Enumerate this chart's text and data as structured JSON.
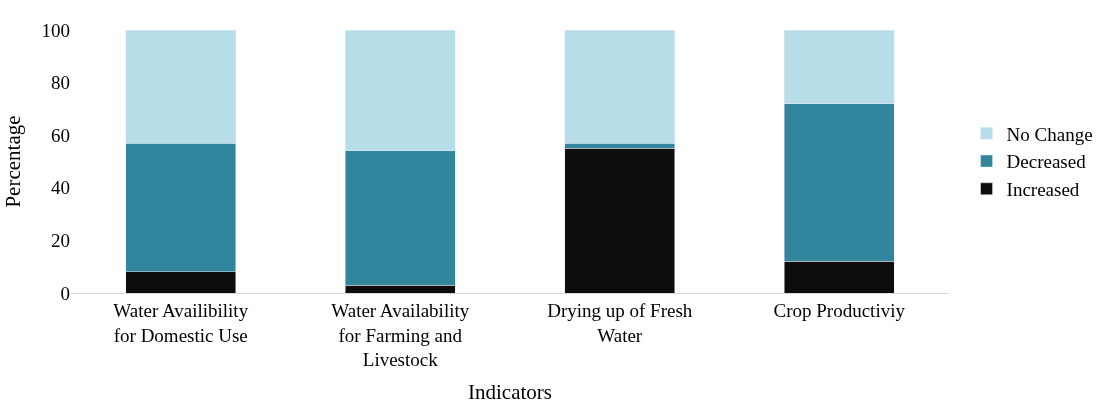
{
  "chart_data": {
    "type": "bar",
    "stacked": true,
    "xlabel": "Indicators",
    "ylabel": "Percentage",
    "categories": [
      "Water Availibility for Domestic Use",
      "Water Availability for Farming and Livestock",
      "Drying up of Fresh Water",
      "Crop Productiviy"
    ],
    "series": [
      {
        "name": "Increased",
        "color": "#0d0d0d",
        "values": [
          8,
          3,
          55,
          12
        ]
      },
      {
        "name": "Decreased",
        "color": "#31859c",
        "values": [
          49,
          51,
          2,
          60
        ]
      },
      {
        "name": "No Change",
        "color": "#b7dde8",
        "values": [
          43,
          46,
          43,
          28
        ]
      }
    ],
    "ylim": [
      0,
      100
    ],
    "yticks": [
      0,
      20,
      40,
      60,
      80,
      100
    ],
    "legend": "right"
  }
}
